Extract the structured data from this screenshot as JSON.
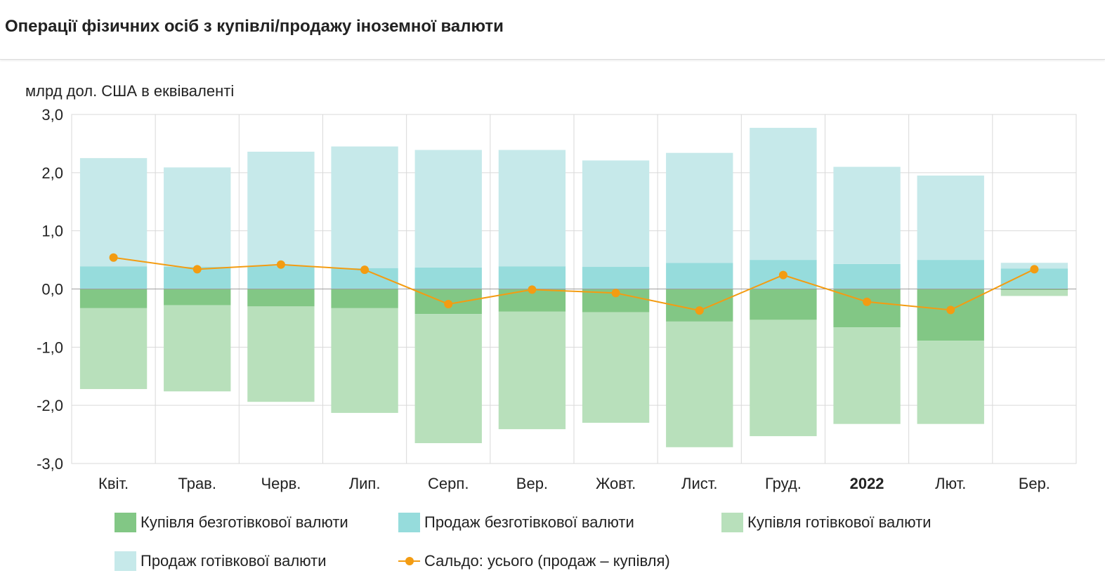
{
  "title": "Операції фізичних осіб з купівлі/продажу іноземної валюти",
  "chart_data": {
    "type": "bar",
    "stacked": true,
    "ylabel": "млрд дол. США в еквіваленті",
    "ylim": [
      -3.0,
      3.0
    ],
    "yticks": [
      "3,0",
      "2,0",
      "1,0",
      "0,0",
      "-1,0",
      "-2,0",
      "-3,0"
    ],
    "ytick_values": [
      3,
      2,
      1,
      0,
      -1,
      -2,
      -3
    ],
    "grid": true,
    "legend_position": "bottom",
    "categories": [
      "Квіт.",
      "Трав.",
      "Черв.",
      "Лип.",
      "Серп.",
      "Вер.",
      "Жовт.",
      "Лист.",
      "Груд.",
      "2022",
      "Лют.",
      "Бер."
    ],
    "bold_categories": [
      "2022"
    ],
    "series": [
      {
        "name": "Купівля безготівкової валюти",
        "type": "bar",
        "color": "#82c785",
        "values": [
          -0.33,
          -0.28,
          -0.3,
          -0.33,
          -0.43,
          -0.39,
          -0.4,
          -0.56,
          -0.53,
          -0.66,
          -0.89,
          -0.02
        ]
      },
      {
        "name": "Продаж безготівкової валюти",
        "type": "bar",
        "color": "#96dcdc",
        "values": [
          0.39,
          0.38,
          0.4,
          0.36,
          0.37,
          0.39,
          0.38,
          0.45,
          0.5,
          0.43,
          0.5,
          0.35
        ]
      },
      {
        "name": "Купівля готівкової валюти",
        "type": "bar",
        "color": "#b8e0bb",
        "values": [
          -1.39,
          -1.48,
          -1.64,
          -1.8,
          -2.22,
          -2.02,
          -1.9,
          -2.16,
          -2.0,
          -1.66,
          -1.43,
          -0.1
        ]
      },
      {
        "name": "Продаж готівкової валюти",
        "type": "bar",
        "color": "#c6e9ea",
        "values": [
          1.86,
          1.71,
          1.96,
          2.09,
          2.02,
          2.0,
          1.83,
          1.89,
          2.27,
          1.67,
          1.45,
          0.1
        ]
      },
      {
        "name": "Сальдо: усього (продаж – купівля)",
        "type": "line",
        "color": "#f39c12",
        "values": [
          0.54,
          0.34,
          0.42,
          0.33,
          -0.26,
          -0.01,
          -0.07,
          -0.37,
          0.24,
          -0.22,
          -0.36,
          0.34
        ]
      }
    ]
  }
}
